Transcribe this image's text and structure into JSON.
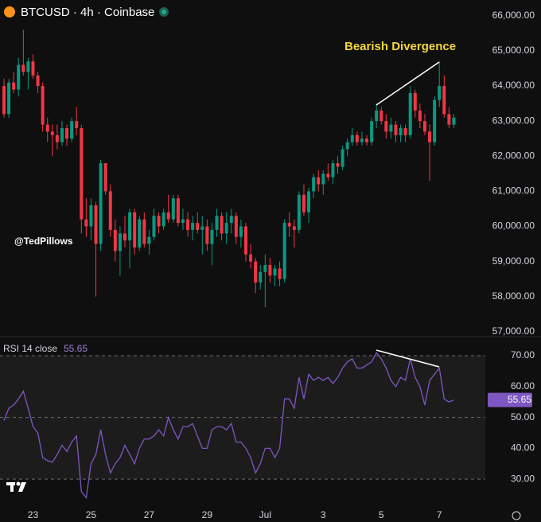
{
  "chart_data": [
    {
      "type": "candlestick",
      "title": "BTCUSD · 4h · Coinbase",
      "annotation": "Bearish Divergence",
      "watermark": "@TedPillows",
      "categories": [
        null,
        null,
        null,
        null,
        null,
        null,
        "23",
        null,
        null,
        null,
        null,
        null,
        null,
        null,
        null,
        null,
        null,
        null,
        "25",
        null,
        null,
        null,
        null,
        null,
        null,
        null,
        null,
        null,
        null,
        null,
        "27",
        null,
        null,
        null,
        null,
        null,
        null,
        null,
        null,
        null,
        null,
        null,
        "29",
        null,
        null,
        null,
        null,
        null,
        null,
        null,
        null,
        null,
        null,
        null,
        "Jul",
        null,
        null,
        null,
        null,
        null,
        null,
        null,
        null,
        null,
        null,
        null,
        "3",
        null,
        null,
        null,
        null,
        null,
        null,
        null,
        null,
        null,
        null,
        null,
        "5",
        null,
        null,
        null,
        null,
        null,
        null,
        null,
        null,
        null,
        null,
        null,
        "7",
        null,
        null,
        null
      ],
      "open": [
        64000,
        63200,
        64100,
        63900,
        64600,
        64400,
        64700,
        64300,
        64000,
        62900,
        62700,
        62600,
        62400,
        62800,
        62500,
        63000,
        62800,
        60200,
        60000,
        60600,
        59500,
        61800,
        61000,
        59900,
        59300,
        59800,
        59600,
        60400,
        59400,
        60200,
        59500,
        59700,
        60300,
        60000,
        60400,
        60200,
        60800,
        60100,
        60200,
        59900,
        60100,
        59900,
        60000,
        59500,
        59900,
        60300,
        59800,
        60100,
        60300,
        59700,
        60000,
        59200,
        59000,
        58400,
        58700,
        58900,
        58600,
        58800,
        58500,
        60100,
        60000,
        59900,
        60900,
        60400,
        61000,
        61400,
        61200,
        61500,
        61400,
        61800,
        61700,
        62200,
        62400,
        62600,
        62400,
        62500,
        62400,
        63000,
        63300,
        63000,
        62700,
        62900,
        62600,
        62800,
        62600,
        63800,
        63300,
        63000,
        62700,
        62400,
        63600,
        64000,
        63200,
        62900
      ],
      "high": [
        64200,
        64200,
        64400,
        64800,
        65600,
        64800,
        64900,
        64400,
        64100,
        63100,
        62900,
        62900,
        63000,
        62900,
        63100,
        63400,
        62900,
        60800,
        60800,
        60700,
        61900,
        61800,
        61200,
        60200,
        60000,
        60300,
        60500,
        60500,
        60300,
        60400,
        59900,
        60500,
        60400,
        60500,
        60900,
        60900,
        60900,
        60500,
        60400,
        60300,
        60400,
        60300,
        60200,
        60100,
        60500,
        60400,
        60400,
        60500,
        60400,
        60200,
        60100,
        59500,
        59100,
        58900,
        59200,
        59100,
        58900,
        59000,
        60200,
        60400,
        60200,
        61000,
        61200,
        61100,
        61500,
        61600,
        61600,
        61800,
        61900,
        62000,
        62300,
        62500,
        62800,
        62700,
        62700,
        62600,
        63100,
        63500,
        63400,
        63200,
        63100,
        63000,
        62900,
        62900,
        64000,
        63900,
        63500,
        63200,
        62900,
        63700,
        64700,
        64300,
        63400,
        63200
      ],
      "low": [
        63100,
        63100,
        63800,
        63700,
        64300,
        63900,
        64200,
        63800,
        62700,
        62400,
        62000,
        62200,
        62300,
        62300,
        62400,
        62600,
        59800,
        59700,
        59600,
        58000,
        59300,
        60900,
        59700,
        59000,
        58600,
        59400,
        58800,
        59200,
        59300,
        59400,
        59200,
        59600,
        59800,
        59900,
        60100,
        60100,
        60000,
        59900,
        59700,
        59600,
        59800,
        59200,
        59300,
        58900,
        59700,
        59600,
        59500,
        59800,
        59500,
        59400,
        59000,
        58800,
        58100,
        58200,
        57700,
        58400,
        58300,
        58300,
        58400,
        59700,
        59400,
        59800,
        60300,
        60100,
        60800,
        61000,
        60900,
        61300,
        61200,
        61500,
        61600,
        62000,
        62300,
        62300,
        62300,
        62300,
        62300,
        62800,
        62900,
        62500,
        62500,
        62400,
        62400,
        62400,
        62500,
        63100,
        62800,
        62600,
        61300,
        62300,
        63400,
        63100,
        62800,
        62800
      ],
      "close": [
        63200,
        64100,
        63900,
        64600,
        64400,
        64700,
        64300,
        64000,
        62900,
        62700,
        62600,
        62400,
        62800,
        62500,
        63000,
        62800,
        60200,
        60000,
        60600,
        59500,
        61800,
        61000,
        59900,
        59300,
        59800,
        59600,
        60400,
        59400,
        60200,
        59500,
        59700,
        60300,
        60000,
        60400,
        60200,
        60800,
        60100,
        60200,
        59900,
        60100,
        59900,
        60000,
        59500,
        59900,
        60300,
        59800,
        60100,
        60300,
        59700,
        60000,
        59200,
        59000,
        58400,
        58700,
        58900,
        58600,
        58800,
        58500,
        60100,
        60000,
        59900,
        60900,
        60400,
        61000,
        61400,
        61200,
        61500,
        61400,
        61800,
        61700,
        62200,
        62400,
        62600,
        62400,
        62500,
        62400,
        63000,
        63300,
        63000,
        62700,
        62900,
        62600,
        62800,
        62600,
        63800,
        63300,
        63000,
        62700,
        62400,
        63600,
        64000,
        63200,
        62900,
        63100
      ],
      "up_color": "#089981",
      "down_color": "#f23645",
      "ylim": [
        56860,
        66450
      ],
      "yticks": [
        {
          "value": 57000,
          "label": "57,000.00"
        },
        {
          "value": 58000,
          "label": "58,000.00"
        },
        {
          "value": 59000,
          "label": "59,000.00"
        },
        {
          "value": 60000,
          "label": "60,000.00"
        },
        {
          "value": 61000,
          "label": "61,000.00"
        },
        {
          "value": 62000,
          "label": "62,000.00"
        },
        {
          "value": 63000,
          "label": "63,000.00"
        },
        {
          "value": 64000,
          "label": "64,000.00"
        },
        {
          "value": 65000,
          "label": "65,000.00"
        },
        {
          "value": 66000,
          "label": "66,000.00"
        }
      ]
    },
    {
      "type": "line",
      "title": "RSI 14 close",
      "color": "#7e57c2",
      "values": [
        49,
        53,
        54,
        56,
        58.5,
        53,
        47,
        45,
        37,
        36,
        35.5,
        38,
        41,
        39,
        42,
        44,
        26,
        24,
        35,
        38,
        46,
        38,
        32,
        35,
        37,
        41,
        38,
        35,
        40,
        43,
        43,
        44,
        46,
        44,
        50,
        46,
        43,
        47,
        47,
        48,
        44,
        40,
        40,
        46,
        47,
        47,
        46,
        48,
        42,
        42,
        40,
        37,
        32,
        35,
        40,
        40,
        37,
        40,
        56,
        56,
        53,
        63,
        56,
        64,
        62,
        63,
        62,
        63,
        61,
        63,
        66,
        68,
        69,
        66,
        66,
        67,
        68,
        71,
        69,
        66,
        62,
        60,
        63,
        62,
        69,
        63,
        60,
        54,
        62,
        64,
        66,
        56,
        55,
        55.65
      ],
      "band": {
        "lower": 30,
        "middle": 50,
        "upper": 70
      },
      "ylim": [
        22.3,
        76.2
      ],
      "yticks": [
        {
          "value": 30,
          "label": "30.00"
        },
        {
          "value": 40,
          "label": "40.00"
        },
        {
          "value": 50,
          "label": "50.00"
        },
        {
          "value": 60,
          "label": "60.00"
        },
        {
          "value": 70,
          "label": "70.00"
        }
      ]
    }
  ]
}
